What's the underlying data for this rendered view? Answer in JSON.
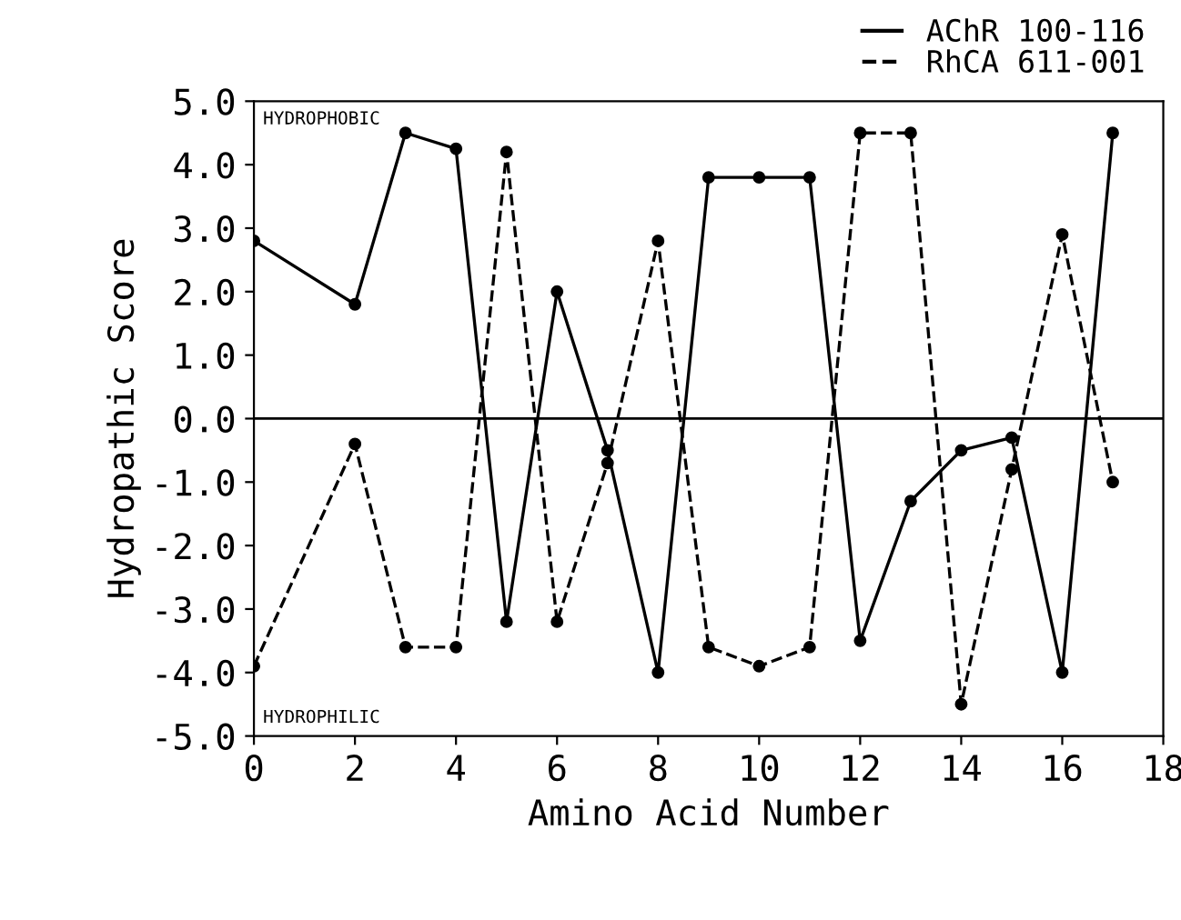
{
  "chart_data": {
    "type": "line",
    "xlabel": "Amino Acid Number",
    "ylabel": "Hydropathic Score",
    "x": [
      0,
      2,
      3,
      4,
      5,
      6,
      7,
      8,
      9,
      10,
      11,
      12,
      13,
      14,
      15,
      16,
      17
    ],
    "series": [
      {
        "name": "AChR 100-116",
        "color": "#000000",
        "line_style": "solid",
        "values": [
          2.8,
          1.8,
          4.5,
          4.25,
          -3.2,
          2.0,
          -0.5,
          -4.0,
          3.8,
          3.8,
          3.8,
          -3.5,
          -1.3,
          -0.5,
          -0.3,
          -4.0,
          4.5
        ]
      },
      {
        "name": "RhCA 611-001",
        "color": "#000000",
        "line_style": "dashed",
        "values": [
          -3.9,
          -0.4,
          -3.6,
          -3.6,
          4.2,
          -3.2,
          -0.7,
          2.8,
          -3.6,
          -3.9,
          -3.6,
          4.5,
          4.5,
          -4.5,
          -0.8,
          2.9,
          -1.0
        ]
      }
    ],
    "marker": "circle",
    "xlim": [
      0,
      18
    ],
    "xticks": [
      0,
      2,
      4,
      6,
      8,
      10,
      12,
      14,
      16,
      18
    ],
    "ylim": [
      -5,
      5
    ],
    "yticks": [
      {
        "value": -5,
        "label": "-5.0"
      },
      {
        "value": -4,
        "label": "-4.0"
      },
      {
        "value": -3,
        "label": "-3.0"
      },
      {
        "value": -2,
        "label": "-2.0"
      },
      {
        "value": -1,
        "label": "-1.0"
      },
      {
        "value": 0,
        "label": "0.0"
      },
      {
        "value": 1,
        "label": "1.0"
      },
      {
        "value": 2,
        "label": "2.0"
      },
      {
        "value": 3,
        "label": "3.0"
      },
      {
        "value": 4,
        "label": "4.0"
      },
      {
        "value": 5,
        "label": "5.0"
      }
    ],
    "ref_lines": [
      {
        "axis": "y",
        "value": 0,
        "label": null
      }
    ],
    "annotations": [
      "HYDROPHOBIC",
      "HYDROPHILIC"
    ],
    "legend": "top right",
    "grid": false
  }
}
